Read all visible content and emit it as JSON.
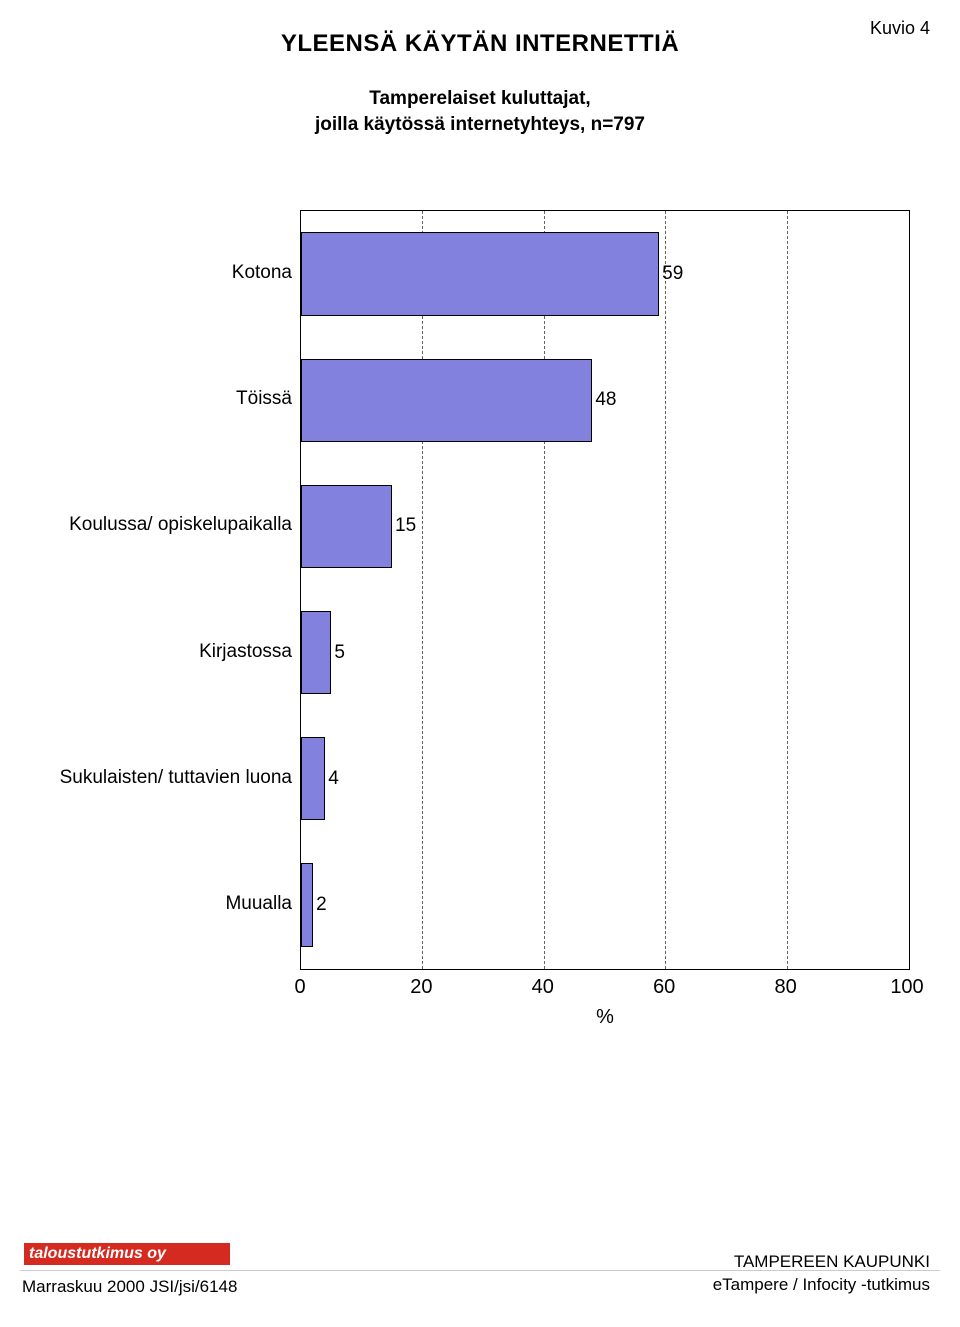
{
  "figure_label": "Kuvio 4",
  "title": "YLEENSÄ KÄYTÄN INTERNETTIÄ",
  "subtitle_line1": "Tamperelaiset kuluttajat,",
  "subtitle_line2": "joilla käytössä internetyhteys, n=797",
  "chart": {
    "type": "bar-horizontal",
    "categories": [
      "Kotona",
      "Töissä",
      "Koulussa/ opiskelupaikalla",
      "Kirjastossa",
      "Sukulaisten/ tuttavien luona",
      "Muualla"
    ],
    "values": [
      59,
      48,
      15,
      5,
      4,
      2
    ],
    "bar_color": "#8282de",
    "bar_border": "#000000",
    "xlim": [
      0,
      100
    ],
    "xticks": [
      0,
      20,
      40,
      60,
      80,
      100
    ],
    "xlabel": "%",
    "grid_color": "#666666",
    "grid_ticks": [
      20,
      40,
      60,
      80
    ],
    "plot_border": "#000000",
    "background": "#ffffff",
    "label_fontsize": 19,
    "tick_fontsize": 20,
    "bar_height_ratio": 0.66
  },
  "footer": {
    "logo_text": "taloustutkimus oy",
    "logo_bg": "#d42a1f",
    "logo_fg": "#ffffff",
    "left_text": "Marraskuu 2000 JSI/jsi/6148",
    "right_line1": "TAMPEREEN KAUPUNKI",
    "right_line2": "eTampere / Infocity -tutkimus"
  }
}
